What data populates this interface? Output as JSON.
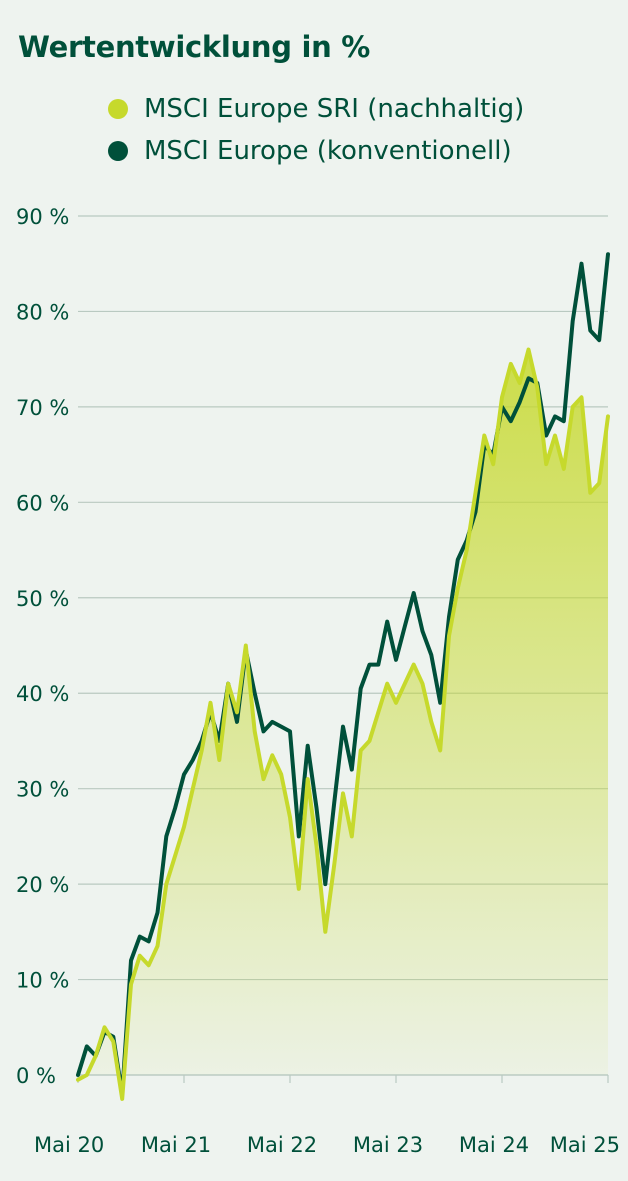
{
  "colors": {
    "background": "#eef3ef",
    "text": "#00503a",
    "grid": "#b9c9c1",
    "sri": "#c6d92c",
    "conventional": "#00503a"
  },
  "chart_data": {
    "type": "line",
    "title": "Wertentwicklung in %",
    "xlabel": "",
    "ylabel": "",
    "ylim": [
      0,
      90
    ],
    "yticks": [
      0,
      10,
      20,
      30,
      40,
      50,
      60,
      70,
      80,
      90
    ],
    "ytick_labels": [
      "0 %",
      "10 %",
      "20 %",
      "30 %",
      "40 %",
      "50 %",
      "60 %",
      "70 %",
      "80 %",
      "90 %"
    ],
    "xlim": [
      0,
      60
    ],
    "xticks": [
      0,
      12,
      24,
      36,
      48,
      60
    ],
    "xtick_labels": [
      "Mai 20",
      "Mai 21",
      "Mai 22",
      "Mai 23",
      "Mai 24",
      "Mai 25"
    ],
    "grid": true,
    "legend_position": "top",
    "series": [
      {
        "name": "MSCI Europe SRI (nachhaltig)",
        "color": "#c6d92c",
        "fill": true,
        "values": [
          [
            0,
            -0.5
          ],
          [
            1,
            0
          ],
          [
            2,
            2
          ],
          [
            3,
            5
          ],
          [
            4,
            3.5
          ],
          [
            5,
            -2.5
          ],
          [
            6,
            9.5
          ],
          [
            7,
            12.5
          ],
          [
            8,
            11.5
          ],
          [
            9,
            13.5
          ],
          [
            10,
            20
          ],
          [
            11,
            23
          ],
          [
            12,
            26
          ],
          [
            13,
            30
          ],
          [
            14,
            34
          ],
          [
            15,
            39
          ],
          [
            16,
            33
          ],
          [
            17,
            41
          ],
          [
            18,
            38
          ],
          [
            19,
            45
          ],
          [
            20,
            36
          ],
          [
            21,
            31
          ],
          [
            22,
            33.5
          ],
          [
            23,
            31.5
          ],
          [
            24,
            27
          ],
          [
            25,
            19.5
          ],
          [
            26,
            31
          ],
          [
            27,
            24
          ],
          [
            28,
            15
          ],
          [
            29,
            22
          ],
          [
            30,
            29.5
          ],
          [
            31,
            25
          ],
          [
            32,
            34
          ],
          [
            33,
            35
          ],
          [
            34,
            38
          ],
          [
            35,
            41
          ],
          [
            36,
            39
          ],
          [
            37,
            41
          ],
          [
            38,
            43
          ],
          [
            39,
            41
          ],
          [
            40,
            37
          ],
          [
            41,
            34
          ],
          [
            42,
            46
          ],
          [
            43,
            51
          ],
          [
            44,
            55
          ],
          [
            45,
            61
          ],
          [
            46,
            67
          ],
          [
            47,
            64
          ],
          [
            48,
            71
          ],
          [
            49,
            74.5
          ],
          [
            50,
            72.5
          ],
          [
            51,
            76
          ],
          [
            52,
            72
          ],
          [
            53,
            64
          ],
          [
            54,
            67
          ],
          [
            55,
            63.5
          ],
          [
            56,
            70
          ],
          [
            57,
            71
          ],
          [
            58,
            61
          ],
          [
            59,
            62
          ],
          [
            60,
            69
          ]
        ]
      },
      {
        "name": "MSCI Europe (konventionell)",
        "color": "#00503a",
        "fill": false,
        "values": [
          [
            0,
            0
          ],
          [
            1,
            3
          ],
          [
            2,
            2
          ],
          [
            3,
            4.5
          ],
          [
            4,
            4
          ],
          [
            5,
            -2
          ],
          [
            6,
            12
          ],
          [
            7,
            14.5
          ],
          [
            8,
            14
          ],
          [
            9,
            17
          ],
          [
            10,
            25
          ],
          [
            11,
            28
          ],
          [
            12,
            31.5
          ],
          [
            13,
            33
          ],
          [
            14,
            35
          ],
          [
            15,
            38
          ],
          [
            16,
            35
          ],
          [
            17,
            41
          ],
          [
            18,
            37
          ],
          [
            19,
            44.5
          ],
          [
            20,
            40
          ],
          [
            21,
            36
          ],
          [
            22,
            37
          ],
          [
            23,
            36.5
          ],
          [
            24,
            36
          ],
          [
            25,
            25
          ],
          [
            26,
            34.5
          ],
          [
            27,
            28
          ],
          [
            28,
            20
          ],
          [
            29,
            28.5
          ],
          [
            30,
            36.5
          ],
          [
            31,
            32
          ],
          [
            32,
            40.5
          ],
          [
            33,
            43
          ],
          [
            34,
            43
          ],
          [
            35,
            47.5
          ],
          [
            36,
            43.5
          ],
          [
            37,
            47
          ],
          [
            38,
            50.5
          ],
          [
            39,
            46.5
          ],
          [
            40,
            44
          ],
          [
            41,
            39
          ],
          [
            42,
            48
          ],
          [
            43,
            54
          ],
          [
            44,
            56
          ],
          [
            45,
            59
          ],
          [
            46,
            66
          ],
          [
            47,
            65
          ],
          [
            48,
            70
          ],
          [
            49,
            68.5
          ],
          [
            50,
            70.5
          ],
          [
            51,
            73
          ],
          [
            52,
            72.5
          ],
          [
            53,
            67
          ],
          [
            54,
            69
          ],
          [
            55,
            68.5
          ],
          [
            56,
            79
          ],
          [
            57,
            85
          ],
          [
            58,
            78
          ],
          [
            59,
            77
          ],
          [
            60,
            86
          ]
        ]
      }
    ]
  }
}
